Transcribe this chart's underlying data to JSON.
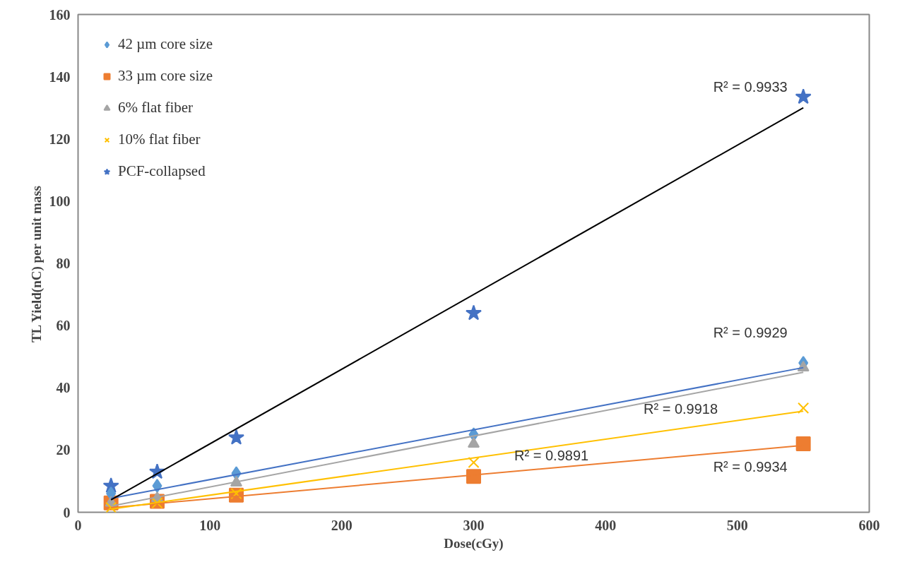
{
  "chart_data": {
    "type": "scatter",
    "xlabel": "Dose(cGy)",
    "ylabel": "TL Yield(nC) per unit mass",
    "xlim": [
      0,
      600
    ],
    "ylim": [
      0,
      160
    ],
    "xticks": [
      0,
      100,
      200,
      300,
      400,
      500,
      600
    ],
    "yticks": [
      0,
      20,
      40,
      60,
      80,
      100,
      120,
      140,
      160
    ],
    "grid": false,
    "legend": "top left",
    "series": [
      {
        "name": "42 µm core size",
        "color": "#5b9bd5",
        "marker": "diamond",
        "x": [
          25,
          60,
          120,
          300,
          550
        ],
        "values": [
          6,
          8.5,
          12.5,
          25,
          48
        ]
      },
      {
        "name": "33 µm core size",
        "color": "#ed7d31",
        "marker": "square",
        "x": [
          25,
          60,
          120,
          300,
          550
        ],
        "values": [
          3,
          3.5,
          5.5,
          11.5,
          22
        ]
      },
      {
        "name": "6% flat fiber",
        "color": "#a5a5a5",
        "marker": "triangle",
        "x": [
          25,
          60,
          120,
          300,
          550
        ],
        "values": [
          3,
          4.5,
          9.5,
          22,
          46.5
        ]
      },
      {
        "name": "10% flat fiber",
        "color": "#ffc000",
        "marker": "cross",
        "x": [
          25,
          60,
          120,
          300,
          550
        ],
        "values": [
          1.5,
          3,
          6,
          16,
          33.5
        ]
      },
      {
        "name": "PCF-collapsed",
        "color": "#4472c4",
        "marker": "star",
        "x": [
          25,
          60,
          120,
          300,
          550
        ],
        "values": [
          8.5,
          13,
          24,
          64,
          133.5
        ]
      },
      {
        "type": "line",
        "color": "#4472c4",
        "marker": "none",
        "line_style": "solid",
        "x": [
          25,
          550
        ],
        "values": [
          4.5,
          46.5
        ]
      },
      {
        "type": "line",
        "color": "#ed7d31",
        "marker": "none",
        "line_style": "solid",
        "x": [
          25,
          550
        ],
        "values": [
          1.5,
          21.5
        ]
      },
      {
        "type": "line",
        "color": "#a5a5a5",
        "marker": "none",
        "line_style": "solid",
        "x": [
          25,
          550
        ],
        "values": [
          2,
          45
        ]
      },
      {
        "type": "line",
        "color": "#ffc000",
        "marker": "none",
        "line_style": "solid",
        "x": [
          25,
          550
        ],
        "values": [
          1,
          32.5
        ]
      },
      {
        "type": "line",
        "color": "#000000",
        "marker": "none",
        "line_style": "solid",
        "x": [
          25,
          550
        ],
        "values": [
          4,
          130
        ]
      }
    ],
    "annotations": [
      {
        "text": "R² = 0.9933",
        "x": 550,
        "y": 130
      },
      {
        "text": "R² = 0.9929",
        "x": 550,
        "y": 46.5
      },
      {
        "text": "R² = 0.9918",
        "x": 457,
        "y": 37.4
      },
      {
        "text": "R² = 0.9891",
        "x": 359,
        "y": 21
      },
      {
        "text": "R² = 0.9934",
        "x": 550,
        "y": 21.5
      }
    ]
  }
}
